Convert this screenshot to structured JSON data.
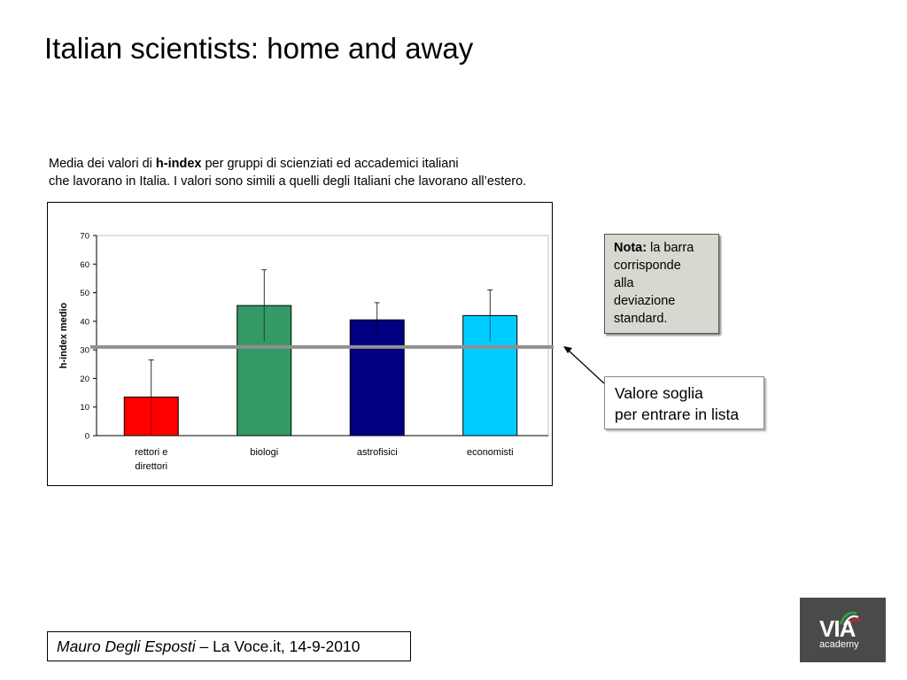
{
  "slide": {
    "title": "Italian scientists: home and away",
    "caption_line1_pre": "Media dei valori di ",
    "caption_line1_bold": "h-index",
    "caption_line1_post": " per gruppi di scienziati ed accademici italiani",
    "caption_line2": "che lavorano in Italia. I valori sono simili a quelli degli Italiani che lavorano all’estero."
  },
  "note": {
    "bold": "Nota:",
    "text_line1": " la barra",
    "text_line2": "corrisponde",
    "text_line3": "alla",
    "text_line4": "deviazione",
    "text_line5": "standard."
  },
  "threshold_label": {
    "line1": "Valore soglia",
    "line2": "per entrare in lista"
  },
  "citation": {
    "author": "Mauro Degli Esposti",
    "rest": " – La Voce.it, 14-9-2010"
  },
  "logo": {
    "word": "VIA",
    "sub": "academy",
    "colors": {
      "green": "#2e9e3e",
      "red": "#d42020",
      "white": "#ffffff"
    }
  },
  "chart_data": {
    "type": "bar",
    "title": "",
    "xlabel": "",
    "ylabel": "h-index medio",
    "ylim": [
      0,
      70
    ],
    "yticks": [
      0,
      10,
      20,
      30,
      40,
      50,
      60,
      70
    ],
    "categories": [
      [
        "rettori e",
        "direttori"
      ],
      [
        "biologi"
      ],
      [
        "astrofisici"
      ],
      [
        "economisti"
      ]
    ],
    "values": [
      13.5,
      45.5,
      40.5,
      42
    ],
    "error_upper": [
      26.5,
      58,
      46.5,
      51
    ],
    "colors": [
      "#ff0000",
      "#339966",
      "#000080",
      "#00ccff"
    ],
    "threshold": 31,
    "threshold_color": "#909090",
    "grid": false
  }
}
